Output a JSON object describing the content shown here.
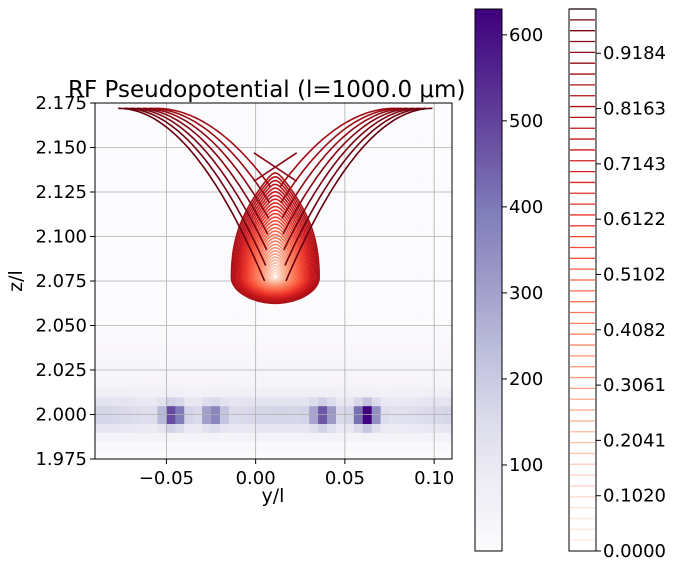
{
  "chart_data": {
    "type": "heatmap",
    "title": "RF Pseudopotential (l=1000.0 μm)",
    "xlabel": "y/l",
    "ylabel": "z/l",
    "xlim": [
      -0.09,
      0.11
    ],
    "ylim": [
      1.975,
      2.175
    ],
    "grid": true,
    "x_ticks": [
      "−0.05",
      "0.00",
      "0.05",
      "0.10"
    ],
    "x_tick_values": [
      -0.05,
      0.0,
      0.05,
      0.1
    ],
    "y_ticks": [
      "1.975",
      "2.000",
      "2.025",
      "2.050",
      "2.075",
      "2.100",
      "2.125",
      "2.150",
      "2.175"
    ],
    "y_tick_values": [
      1.975,
      2.0,
      2.025,
      2.05,
      2.075,
      2.1,
      2.125,
      2.15,
      2.175
    ],
    "heatmap": {
      "colormap": "Purples",
      "vmin": 0,
      "vmax": 630,
      "bands": [
        {
          "z": 2.0,
          "width": 0.012,
          "base": 100
        },
        {
          "z": 2.025,
          "width": 0.02,
          "base": 25
        }
      ],
      "hotspots": [
        {
          "y": -0.046,
          "z": 2.0,
          "value": 460
        },
        {
          "y": -0.024,
          "z": 2.0,
          "value": 300
        },
        {
          "y": 0.038,
          "z": 2.0,
          "value": 380
        },
        {
          "y": 0.062,
          "z": 2.0,
          "value": 620
        }
      ]
    },
    "contour": {
      "colormap": "Reds",
      "vmin": 0.0,
      "vmax": 1.0,
      "minimum": {
        "y": 0.011,
        "z": 2.077
      },
      "saddle": {
        "y": 0.012,
        "z": 2.139
      }
    },
    "colorbar_heatmap": {
      "ticks": [
        "100",
        "200",
        "300",
        "400",
        "500",
        "600"
      ],
      "tick_values": [
        100,
        200,
        300,
        400,
        500,
        600
      ],
      "colormap": "Purples",
      "min": 0,
      "max": 630
    },
    "colorbar_contour": {
      "ticks": [
        "0.0000",
        "0.1020",
        "0.2041",
        "0.3061",
        "0.4082",
        "0.5102",
        "0.6122",
        "0.7143",
        "0.8163",
        "0.9184"
      ],
      "tick_values": [
        0.0,
        0.102,
        0.2041,
        0.3061,
        0.4082,
        0.5102,
        0.6122,
        0.7143,
        0.8163,
        0.9184
      ],
      "colormap": "Reds",
      "levels": 50,
      "max": 1.0
    }
  }
}
